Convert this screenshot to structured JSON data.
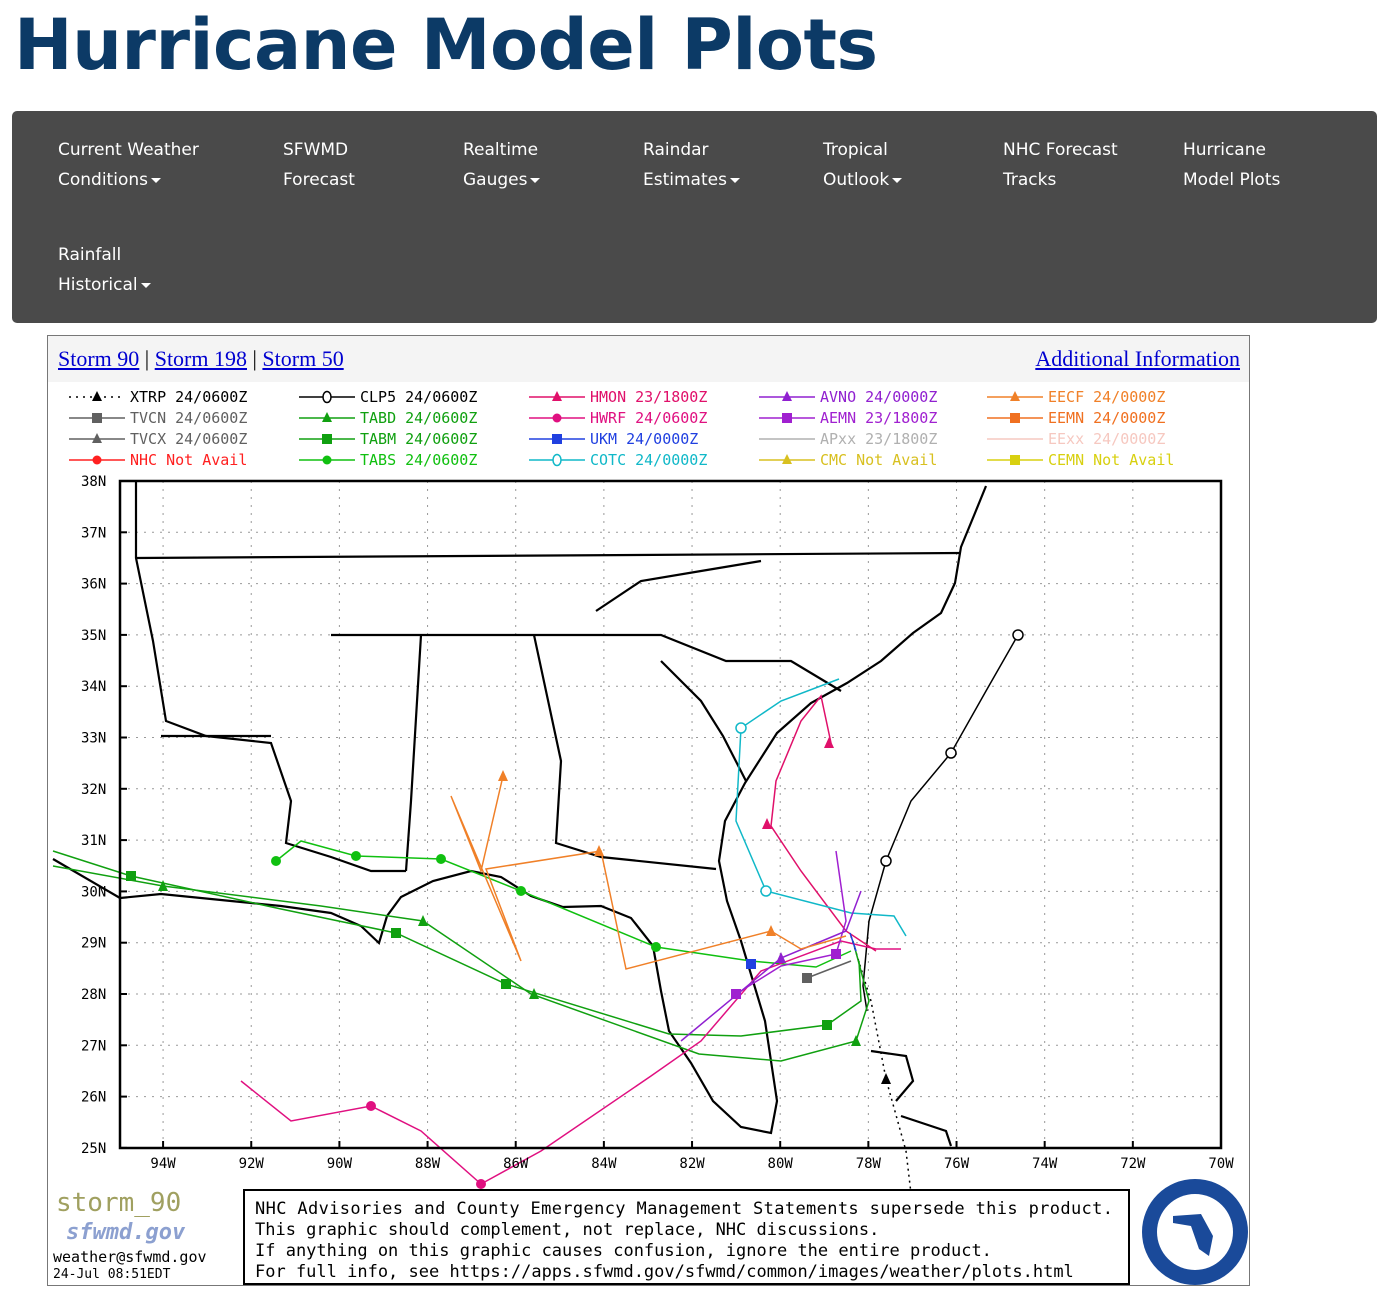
{
  "header": {
    "title": "Hurricane Model Plots"
  },
  "nav": [
    {
      "line1": "Current Weather",
      "line2": "Conditions",
      "dropdown": true
    },
    {
      "line1": "SFWMD",
      "line2": "Forecast",
      "dropdown": false
    },
    {
      "line1": "Realtime",
      "line2": "Gauges",
      "dropdown": true
    },
    {
      "line1": "Raindar",
      "line2": "Estimates",
      "dropdown": true
    },
    {
      "line1": "Tropical",
      "line2": "Outlook",
      "dropdown": true
    },
    {
      "line1": "NHC Forecast",
      "line2": "Tracks",
      "dropdown": false
    },
    {
      "line1": "Hurricane",
      "line2": "Model Plots",
      "dropdown": false
    },
    {
      "line1": "Rainfall",
      "line2": "Historical",
      "dropdown": true
    }
  ],
  "storm_links": [
    "Storm 90",
    "Storm 198",
    "Storm 50"
  ],
  "separator": "|",
  "additional_link": "Additional Information",
  "map": {
    "legend": [
      {
        "name": "XTRP",
        "time": "24/0600Z",
        "color": "#000000",
        "marker": "triangle",
        "dotted": true
      },
      {
        "name": "TVCN",
        "time": "24/0600Z",
        "color": "#606060",
        "marker": "square"
      },
      {
        "name": "TVCX",
        "time": "24/0600Z",
        "color": "#606060",
        "marker": "triangle"
      },
      {
        "name": "NHC",
        "time": "Not Avail",
        "color": "#ff2020",
        "marker": "circle"
      },
      {
        "name": "CLP5",
        "time": "24/0600Z",
        "color": "#000000",
        "marker": "zero"
      },
      {
        "name": "TABD",
        "time": "24/0600Z",
        "color": "#10a010",
        "marker": "triangle"
      },
      {
        "name": "TABM",
        "time": "24/0600Z",
        "color": "#10a010",
        "marker": "square"
      },
      {
        "name": "TABS",
        "time": "24/0600Z",
        "color": "#10c010",
        "marker": "circle"
      },
      {
        "name": "HMON",
        "time": "23/1800Z",
        "color": "#e0106a",
        "marker": "triangle"
      },
      {
        "name": "HWRF",
        "time": "24/0600Z",
        "color": "#e01080",
        "marker": "circle"
      },
      {
        "name": "UKM",
        "time": "24/0000Z",
        "color": "#2040e0",
        "marker": "square"
      },
      {
        "name": "COTC",
        "time": "24/0000Z",
        "color": "#10b8c8",
        "marker": "zero"
      },
      {
        "name": "AVNO",
        "time": "24/0000Z",
        "color": "#9020d0",
        "marker": "triangle"
      },
      {
        "name": "AEMN",
        "time": "23/1800Z",
        "color": "#a020d0",
        "marker": "square"
      },
      {
        "name": "APxx",
        "time": "23/1800Z",
        "color": "#b0b0b0",
        "marker": "none"
      },
      {
        "name": "CMC",
        "time": "Not Avail",
        "color": "#d8c020",
        "marker": "triangle"
      },
      {
        "name": "EECF",
        "time": "24/0000Z",
        "color": "#f08028",
        "marker": "triangle"
      },
      {
        "name": "EEMN",
        "time": "24/0000Z",
        "color": "#f07020",
        "marker": "square"
      },
      {
        "name": "EExx",
        "time": "24/0000Z",
        "color": "#f6c8c0",
        "marker": "none"
      },
      {
        "name": "CEMN",
        "time": "Not Avail",
        "color": "#d8d010",
        "marker": "square"
      }
    ],
    "lat_ticks": [
      {
        "value": 38,
        "label": "38N"
      },
      {
        "value": 37,
        "label": "37N"
      },
      {
        "value": 36,
        "label": "36N"
      },
      {
        "value": 35,
        "label": "35N"
      },
      {
        "value": 34,
        "label": "34N"
      },
      {
        "value": 33,
        "label": "33N"
      },
      {
        "value": 32,
        "label": "32N"
      },
      {
        "value": 31,
        "label": "31N"
      },
      {
        "value": 30,
        "label": "30N"
      },
      {
        "value": 29,
        "label": "29N"
      },
      {
        "value": 28,
        "label": "28N"
      },
      {
        "value": 27,
        "label": "27N"
      },
      {
        "value": 26,
        "label": "26N"
      },
      {
        "value": 25,
        "label": "25N"
      }
    ],
    "lon_ticks": [
      {
        "value": -94,
        "label": "94W"
      },
      {
        "value": -92,
        "label": "92W"
      },
      {
        "value": -90,
        "label": "90W"
      },
      {
        "value": -88,
        "label": "88W"
      },
      {
        "value": -86,
        "label": "86W"
      },
      {
        "value": -84,
        "label": "84W"
      },
      {
        "value": -82,
        "label": "82W"
      },
      {
        "value": -80,
        "label": "80W"
      },
      {
        "value": -78,
        "label": "78W"
      },
      {
        "value": -76,
        "label": "76W"
      },
      {
        "value": -74,
        "label": "74W"
      },
      {
        "value": -72,
        "label": "72W"
      },
      {
        "value": -70,
        "label": "70W"
      }
    ],
    "stamp": "storm_90",
    "site": "sfwmd.gov",
    "email": "weather@sfwmd.gov",
    "timestamp": "24-Jul 08:51EDT",
    "disclaimer": [
      "NHC Advisories and County Emergency Management Statements supersede this product.",
      "This graphic should complement, not replace, NHC discussions.",
      "If anything on this graphic causes confusion, ignore the entire product.",
      "For full info, see  https://apps.sfwmd.gov/sfwmd/common/images/weather/plots.html"
    ]
  }
}
